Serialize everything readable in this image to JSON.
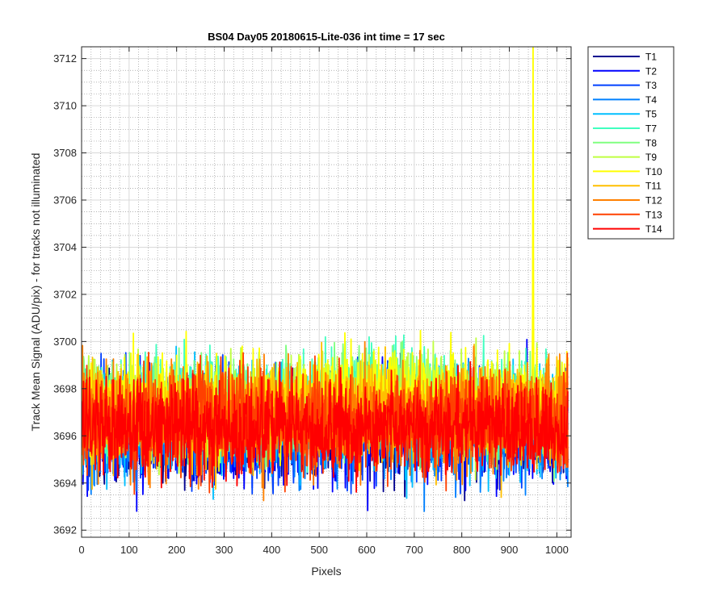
{
  "chart_data": {
    "type": "line",
    "title": "BS04 Day05 20180615-Lite-036 int time = 17 sec",
    "xlabel": "Pixels",
    "ylabel": "Track Mean Signal (ADU/pix) - for tracks not illuminated",
    "xlim": [
      0,
      1030
    ],
    "ylim": [
      3691.7,
      3712.5
    ],
    "xticks": [
      0,
      100,
      200,
      300,
      400,
      500,
      600,
      700,
      800,
      900,
      1000
    ],
    "yticks": [
      3692,
      3694,
      3696,
      3698,
      3700,
      3702,
      3704,
      3706,
      3708,
      3710,
      3712
    ],
    "grid": true,
    "minor_grid": true,
    "legend_position": "outside-top-right",
    "num_points": 1024,
    "series": [
      {
        "name": "T1",
        "color": "#00008f",
        "mean": 3696.3,
        "spread": 1.45
      },
      {
        "name": "T2",
        "color": "#0000ff",
        "mean": 3696.3,
        "spread": 1.45
      },
      {
        "name": "T3",
        "color": "#0040ff",
        "mean": 3696.4,
        "spread": 1.45
      },
      {
        "name": "T4",
        "color": "#0080ff",
        "mean": 3696.4,
        "spread": 1.45
      },
      {
        "name": "T5",
        "color": "#00bfff",
        "mean": 3696.6,
        "spread": 1.45
      },
      {
        "name": "T7",
        "color": "#40ffbf",
        "mean": 3697.3,
        "spread": 1.4
      },
      {
        "name": "T8",
        "color": "#80ff80",
        "mean": 3697.0,
        "spread": 1.4
      },
      {
        "name": "T9",
        "color": "#bfff40",
        "mean": 3697.1,
        "spread": 1.4
      },
      {
        "name": "T10",
        "color": "#ffff00",
        "mean": 3697.2,
        "spread": 1.4,
        "spike": {
          "x": 950,
          "y": 3712.5
        }
      },
      {
        "name": "T11",
        "color": "#ffbf00",
        "mean": 3696.9,
        "spread": 1.4
      },
      {
        "name": "T12",
        "color": "#ff8000",
        "mean": 3696.8,
        "spread": 1.4
      },
      {
        "name": "T13",
        "color": "#ff4000",
        "mean": 3696.6,
        "spread": 1.4
      },
      {
        "name": "T14",
        "color": "#ff0000",
        "mean": 3696.3,
        "spread": 1.35
      }
    ]
  }
}
